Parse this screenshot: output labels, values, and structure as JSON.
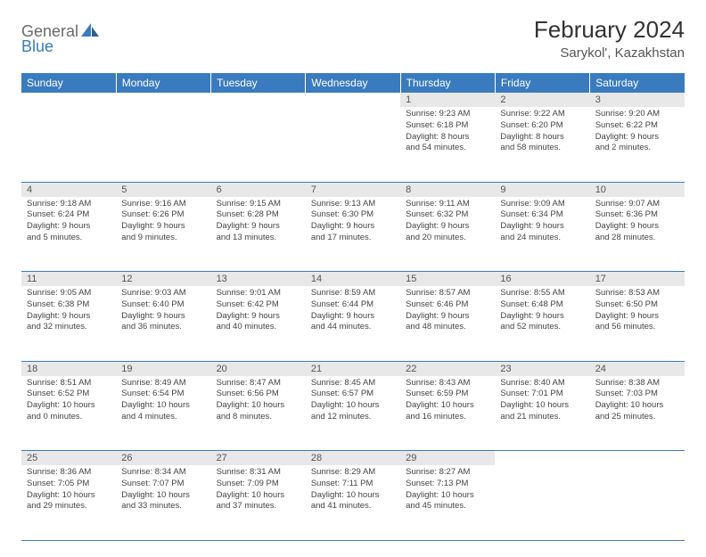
{
  "logo": {
    "text1": "General",
    "text2": "Blue"
  },
  "title": "February 2024",
  "location": "Sarykol', Kazakhstan",
  "colors": {
    "header_bg": "#3a7bbf",
    "header_text": "#ffffff",
    "daynum_bg": "#e8e8e8",
    "daynum_text": "#555555",
    "body_text": "#444444",
    "rule": "#3a7bbf",
    "logo_gray": "#6a6a6a",
    "logo_blue": "#3a7bbf"
  },
  "weekdays": [
    "Sunday",
    "Monday",
    "Tuesday",
    "Wednesday",
    "Thursday",
    "Friday",
    "Saturday"
  ],
  "weeks": [
    {
      "days": [
        null,
        null,
        null,
        null,
        {
          "n": "1",
          "sr": "Sunrise: 9:23 AM",
          "ss": "Sunset: 6:18 PM",
          "d1": "Daylight: 8 hours",
          "d2": "and 54 minutes."
        },
        {
          "n": "2",
          "sr": "Sunrise: 9:22 AM",
          "ss": "Sunset: 6:20 PM",
          "d1": "Daylight: 8 hours",
          "d2": "and 58 minutes."
        },
        {
          "n": "3",
          "sr": "Sunrise: 9:20 AM",
          "ss": "Sunset: 6:22 PM",
          "d1": "Daylight: 9 hours",
          "d2": "and 2 minutes."
        }
      ]
    },
    {
      "days": [
        {
          "n": "4",
          "sr": "Sunrise: 9:18 AM",
          "ss": "Sunset: 6:24 PM",
          "d1": "Daylight: 9 hours",
          "d2": "and 5 minutes."
        },
        {
          "n": "5",
          "sr": "Sunrise: 9:16 AM",
          "ss": "Sunset: 6:26 PM",
          "d1": "Daylight: 9 hours",
          "d2": "and 9 minutes."
        },
        {
          "n": "6",
          "sr": "Sunrise: 9:15 AM",
          "ss": "Sunset: 6:28 PM",
          "d1": "Daylight: 9 hours",
          "d2": "and 13 minutes."
        },
        {
          "n": "7",
          "sr": "Sunrise: 9:13 AM",
          "ss": "Sunset: 6:30 PM",
          "d1": "Daylight: 9 hours",
          "d2": "and 17 minutes."
        },
        {
          "n": "8",
          "sr": "Sunrise: 9:11 AM",
          "ss": "Sunset: 6:32 PM",
          "d1": "Daylight: 9 hours",
          "d2": "and 20 minutes."
        },
        {
          "n": "9",
          "sr": "Sunrise: 9:09 AM",
          "ss": "Sunset: 6:34 PM",
          "d1": "Daylight: 9 hours",
          "d2": "and 24 minutes."
        },
        {
          "n": "10",
          "sr": "Sunrise: 9:07 AM",
          "ss": "Sunset: 6:36 PM",
          "d1": "Daylight: 9 hours",
          "d2": "and 28 minutes."
        }
      ]
    },
    {
      "days": [
        {
          "n": "11",
          "sr": "Sunrise: 9:05 AM",
          "ss": "Sunset: 6:38 PM",
          "d1": "Daylight: 9 hours",
          "d2": "and 32 minutes."
        },
        {
          "n": "12",
          "sr": "Sunrise: 9:03 AM",
          "ss": "Sunset: 6:40 PM",
          "d1": "Daylight: 9 hours",
          "d2": "and 36 minutes."
        },
        {
          "n": "13",
          "sr": "Sunrise: 9:01 AM",
          "ss": "Sunset: 6:42 PM",
          "d1": "Daylight: 9 hours",
          "d2": "and 40 minutes."
        },
        {
          "n": "14",
          "sr": "Sunrise: 8:59 AM",
          "ss": "Sunset: 6:44 PM",
          "d1": "Daylight: 9 hours",
          "d2": "and 44 minutes."
        },
        {
          "n": "15",
          "sr": "Sunrise: 8:57 AM",
          "ss": "Sunset: 6:46 PM",
          "d1": "Daylight: 9 hours",
          "d2": "and 48 minutes."
        },
        {
          "n": "16",
          "sr": "Sunrise: 8:55 AM",
          "ss": "Sunset: 6:48 PM",
          "d1": "Daylight: 9 hours",
          "d2": "and 52 minutes."
        },
        {
          "n": "17",
          "sr": "Sunrise: 8:53 AM",
          "ss": "Sunset: 6:50 PM",
          "d1": "Daylight: 9 hours",
          "d2": "and 56 minutes."
        }
      ]
    },
    {
      "days": [
        {
          "n": "18",
          "sr": "Sunrise: 8:51 AM",
          "ss": "Sunset: 6:52 PM",
          "d1": "Daylight: 10 hours",
          "d2": "and 0 minutes."
        },
        {
          "n": "19",
          "sr": "Sunrise: 8:49 AM",
          "ss": "Sunset: 6:54 PM",
          "d1": "Daylight: 10 hours",
          "d2": "and 4 minutes."
        },
        {
          "n": "20",
          "sr": "Sunrise: 8:47 AM",
          "ss": "Sunset: 6:56 PM",
          "d1": "Daylight: 10 hours",
          "d2": "and 8 minutes."
        },
        {
          "n": "21",
          "sr": "Sunrise: 8:45 AM",
          "ss": "Sunset: 6:57 PM",
          "d1": "Daylight: 10 hours",
          "d2": "and 12 minutes."
        },
        {
          "n": "22",
          "sr": "Sunrise: 8:43 AM",
          "ss": "Sunset: 6:59 PM",
          "d1": "Daylight: 10 hours",
          "d2": "and 16 minutes."
        },
        {
          "n": "23",
          "sr": "Sunrise: 8:40 AM",
          "ss": "Sunset: 7:01 PM",
          "d1": "Daylight: 10 hours",
          "d2": "and 21 minutes."
        },
        {
          "n": "24",
          "sr": "Sunrise: 8:38 AM",
          "ss": "Sunset: 7:03 PM",
          "d1": "Daylight: 10 hours",
          "d2": "and 25 minutes."
        }
      ]
    },
    {
      "days": [
        {
          "n": "25",
          "sr": "Sunrise: 8:36 AM",
          "ss": "Sunset: 7:05 PM",
          "d1": "Daylight: 10 hours",
          "d2": "and 29 minutes."
        },
        {
          "n": "26",
          "sr": "Sunrise: 8:34 AM",
          "ss": "Sunset: 7:07 PM",
          "d1": "Daylight: 10 hours",
          "d2": "and 33 minutes."
        },
        {
          "n": "27",
          "sr": "Sunrise: 8:31 AM",
          "ss": "Sunset: 7:09 PM",
          "d1": "Daylight: 10 hours",
          "d2": "and 37 minutes."
        },
        {
          "n": "28",
          "sr": "Sunrise: 8:29 AM",
          "ss": "Sunset: 7:11 PM",
          "d1": "Daylight: 10 hours",
          "d2": "and 41 minutes."
        },
        {
          "n": "29",
          "sr": "Sunrise: 8:27 AM",
          "ss": "Sunset: 7:13 PM",
          "d1": "Daylight: 10 hours",
          "d2": "and 45 minutes."
        },
        null,
        null
      ]
    }
  ]
}
